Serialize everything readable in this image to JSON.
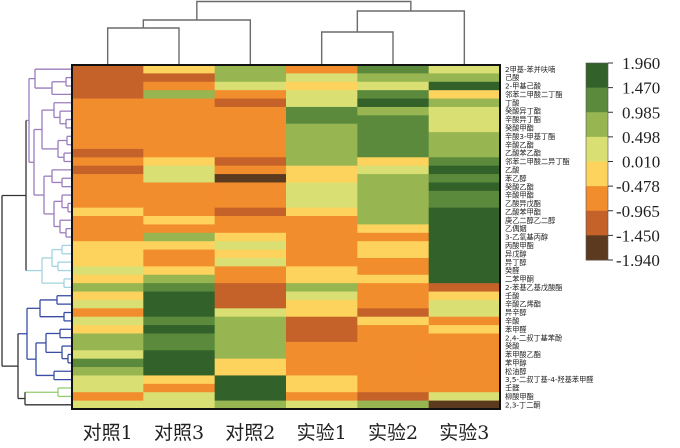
{
  "chart_data": {
    "type": "heatmap",
    "title": "",
    "columns": [
      "对照1",
      "对照3",
      "对照2",
      "实验1",
      "实验2",
      "实验3"
    ],
    "rows": [
      "2甲基-苯并呋喃",
      "己酸",
      "2-甲基己酸",
      "邻苯二甲酸二丁酯",
      "丁酸",
      "癸酸异丁酯",
      "辛酸异丁酯",
      "癸酸甲酯",
      "辛酸3-甲基丁酯",
      "辛酸乙酯",
      "乙酸苯乙酯",
      "邻苯二甲酸二异丁酯",
      "乙酸",
      "苯乙醇",
      "癸酸乙酯",
      "辛酸甲酯",
      "乙酸异戊酯",
      "乙酸苯甲酯",
      "庚乙二醇乙二醇",
      "乙偶姻",
      "3-乙氧基丙醇",
      "丙酸甲酯",
      "异戊醇",
      "异丁醇",
      "癸醛",
      "二苯甲酮",
      "2-苯基乙基戊酸酯",
      "壬酸",
      "辛酸乙烯酯",
      "异辛醇",
      "辛酸",
      "苯甲醛",
      "2,4-二叔丁基苯酚",
      "癸酸",
      "苯甲酸乙酯",
      "苯甲醇",
      "松油醇",
      "3,5-二叔丁基-4-羟基苯甲醛",
      "壬醛",
      "柳酸甲酯",
      "2,3-丁二酮"
    ],
    "values": [
      [
        -1.21,
        -0.23,
        0.74,
        -0.72,
        1.23,
        0.25
      ],
      [
        -1.21,
        -1.21,
        0.74,
        0.25,
        0.74,
        0.74
      ],
      [
        -1.21,
        -0.72,
        0.25,
        -0.23,
        0.25,
        1.72
      ],
      [
        -1.21,
        0.74,
        -0.72,
        0.25,
        1.23,
        -0.23
      ],
      [
        -0.72,
        -0.72,
        -1.21,
        0.25,
        1.72,
        0.74
      ],
      [
        -0.72,
        -0.72,
        -0.72,
        1.23,
        0.74,
        0.25
      ],
      [
        -0.72,
        -0.72,
        -0.72,
        1.23,
        1.23,
        0.25
      ],
      [
        -0.72,
        -0.72,
        -0.72,
        0.74,
        1.23,
        0.25
      ],
      [
        -0.72,
        -0.72,
        -0.72,
        0.74,
        1.23,
        0.74
      ],
      [
        -0.72,
        -0.72,
        -0.72,
        0.74,
        1.23,
        0.74
      ],
      [
        -1.21,
        -0.72,
        -0.72,
        0.74,
        1.23,
        0.74
      ],
      [
        -0.72,
        -0.23,
        -1.21,
        0.74,
        -0.23,
        1.23
      ],
      [
        -1.21,
        0.25,
        -0.72,
        -0.23,
        0.25,
        1.72
      ],
      [
        -0.72,
        0.25,
        -1.7,
        -0.23,
        0.74,
        1.23
      ],
      [
        -0.72,
        -0.72,
        -0.72,
        0.25,
        0.74,
        1.72
      ],
      [
        -0.72,
        -0.72,
        -0.72,
        0.25,
        0.74,
        1.23
      ],
      [
        -0.72,
        -0.72,
        -0.72,
        0.25,
        0.74,
        1.23
      ],
      [
        -0.23,
        -0.72,
        -1.21,
        -0.23,
        0.74,
        1.72
      ],
      [
        -0.72,
        -0.23,
        -0.72,
        -0.72,
        0.74,
        1.72
      ],
      [
        -0.72,
        -0.72,
        -0.72,
        -0.72,
        -0.23,
        1.72
      ],
      [
        -0.72,
        0.74,
        -0.23,
        -0.72,
        -0.72,
        1.72
      ],
      [
        -0.23,
        -0.23,
        0.25,
        -0.72,
        -0.23,
        1.72
      ],
      [
        -0.23,
        -0.72,
        -0.23,
        -0.72,
        -0.23,
        1.72
      ],
      [
        -0.23,
        -0.72,
        0.25,
        -0.72,
        -0.72,
        1.72
      ],
      [
        0.25,
        -0.23,
        -0.72,
        -0.23,
        -0.72,
        1.72
      ],
      [
        -0.23,
        0.74,
        -0.72,
        -0.23,
        -0.23,
        1.72
      ],
      [
        0.74,
        1.23,
        -1.21,
        0.74,
        -0.72,
        -1.21
      ],
      [
        -0.23,
        1.72,
        -1.21,
        0.25,
        -0.72,
        -0.23
      ],
      [
        0.25,
        1.72,
        -1.21,
        -0.23,
        -0.72,
        0.25
      ],
      [
        -0.72,
        1.72,
        0.25,
        -0.23,
        -1.21,
        0.25
      ],
      [
        0.25,
        1.23,
        0.74,
        -1.21,
        -0.23,
        -0.72
      ],
      [
        -0.23,
        1.72,
        0.74,
        -1.21,
        -0.72,
        -0.23
      ],
      [
        0.74,
        1.23,
        0.74,
        -1.21,
        -0.72,
        -0.72
      ],
      [
        0.74,
        1.23,
        0.74,
        -0.72,
        -0.72,
        -0.72
      ],
      [
        0.25,
        1.72,
        0.74,
        -0.72,
        -0.72,
        -0.72
      ],
      [
        1.23,
        1.72,
        -0.23,
        -0.72,
        -0.72,
        -0.72
      ],
      [
        0.74,
        1.72,
        -0.23,
        -0.72,
        -0.72,
        -0.72
      ],
      [
        0.25,
        -0.23,
        1.72,
        -0.23,
        -0.72,
        -0.72
      ],
      [
        0.25,
        -0.72,
        1.72,
        -0.23,
        -0.72,
        -0.72
      ],
      [
        -0.72,
        0.25,
        1.72,
        -0.72,
        -1.21,
        0.25
      ],
      [
        0.25,
        0.25,
        0.74,
        0.25,
        0.74,
        -1.7
      ]
    ],
    "colorbar": {
      "ticks": [
        "1.960",
        "1.470",
        "0.985",
        "0.498",
        "0.010",
        "-0.478",
        "-0.965",
        "-1.450",
        "-1.940"
      ],
      "range": [
        -1.94,
        1.96
      ],
      "colors": [
        "#33612a",
        "#5b8a3c",
        "#97b652",
        "#d9df72",
        "#fdd35e",
        "#f28d2e",
        "#c4622a",
        "#5b3a1f"
      ]
    },
    "row_cluster_colors": {
      "purple": "#9c7dbd",
      "cyan": "#a3d4de",
      "blue": "#3a4ea5",
      "green": "#91cd72",
      "orange": "#e0663a",
      "black": "#333333"
    }
  }
}
